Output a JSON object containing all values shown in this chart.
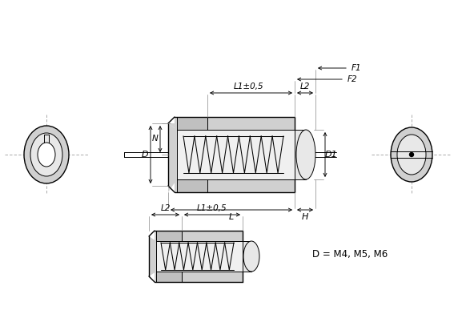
{
  "bg_color": "#ffffff",
  "note": "D = M4, M5, M6",
  "label_D": "D",
  "label_D1": "D1",
  "label_L": "L",
  "label_H": "H",
  "label_L1": "L1±0,5",
  "label_L2": "L2",
  "label_F1": "F1",
  "label_F2": "F2",
  "label_N": "N"
}
